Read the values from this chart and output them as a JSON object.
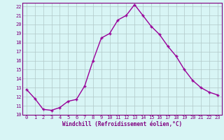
{
  "x": [
    0,
    1,
    2,
    3,
    4,
    5,
    6,
    7,
    8,
    9,
    10,
    11,
    12,
    13,
    14,
    15,
    16,
    17,
    18,
    19,
    20,
    21,
    22,
    23
  ],
  "y": [
    12.8,
    11.8,
    10.6,
    10.5,
    10.8,
    11.5,
    11.7,
    13.2,
    16.0,
    18.5,
    19.0,
    20.5,
    21.0,
    22.2,
    21.0,
    19.8,
    18.9,
    17.6,
    16.5,
    15.0,
    13.8,
    13.0,
    12.5,
    12.2
  ],
  "line_color": "#990099",
  "marker": "+",
  "bg_color": "#d8f5f5",
  "grid_color": "#b0c8c8",
  "xlabel": "Windchill (Refroidissement éolien,°C)",
  "xlim": [
    -0.5,
    23.5
  ],
  "ylim": [
    10,
    22.4
  ],
  "yticks": [
    10,
    11,
    12,
    13,
    14,
    15,
    16,
    17,
    18,
    19,
    20,
    21,
    22
  ],
  "xticks": [
    0,
    1,
    2,
    3,
    4,
    5,
    6,
    7,
    8,
    9,
    10,
    11,
    12,
    13,
    14,
    15,
    16,
    17,
    18,
    19,
    20,
    21,
    22,
    23
  ],
  "title_color": "#800080",
  "tick_color": "#800080",
  "tick_fontsize": 5.0,
  "xlabel_fontsize": 5.5,
  "linewidth": 1.0,
  "markersize": 3.5
}
